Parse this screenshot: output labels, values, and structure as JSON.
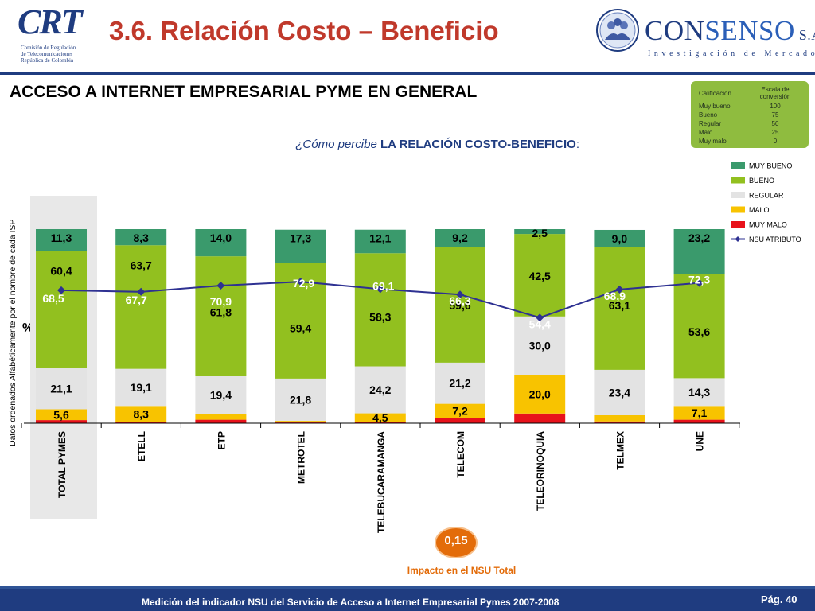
{
  "header": {
    "title": "3.6. Relación Costo – Beneficio",
    "crt_logo_text": "CRT",
    "crt_sub_lines": [
      "Comisión de Regulación",
      "de Telecomunicaciones",
      "República de Colombia"
    ],
    "consenso_name_a": "CON",
    "consenso_name_b": "SENSO",
    "consenso_suffix": " S.A.",
    "consenso_tagline": "Investigación de Mercados"
  },
  "section_title": "ACCESO A INTERNET EMPRESARIAL PYME EN GENERAL",
  "question": {
    "prefix": "¿Cómo percibe ",
    "bold": "LA RELACIÓN COSTO-BENEFICIO",
    "suffix": ":"
  },
  "scale_table": {
    "col1_header": "Calificación",
    "col2_header": "Escala de conversión",
    "rows": [
      {
        "label": "Muy bueno",
        "value": "100"
      },
      {
        "label": "Bueno",
        "value": "75"
      },
      {
        "label": "Regular",
        "value": "50"
      },
      {
        "label": "Malo",
        "value": "25"
      },
      {
        "label": "Muy malo",
        "value": "0"
      }
    ]
  },
  "y_axis_label": "Datos ordenados Alfabéticamente por el nombre de cada ISP",
  "pct_label": "%",
  "impact": {
    "value": "0,15",
    "label": "Impacto en el NSU Total"
  },
  "footer": {
    "text": "Medición del  indicador NSU del Servicio de Acceso a Internet Empresarial Pymes 2007-2008",
    "page": "Pág. 40"
  },
  "colors": {
    "muy_bueno": "#3a9a6c",
    "bueno": "#92c01f",
    "regular": "#e3e3e3",
    "malo": "#f8c300",
    "muy_malo": "#e8121b",
    "nsu_line": "#2e3192",
    "title_red": "#c0392b",
    "brand_blue": "#1f3c80"
  },
  "chart_data": {
    "type": "bar",
    "stacked": true,
    "categories": [
      "TOTAL PYMES",
      "ETELL",
      "ETP",
      "METROTEL",
      "TELEBUCARAMANGA",
      "TELECOM",
      "TELEORINOQUIA",
      "TELMEX",
      "UNE"
    ],
    "series": [
      {
        "name": "MUY MALO",
        "values": [
          1.6,
          0.6,
          1.8,
          0.4,
          0.6,
          2.8,
          5.0,
          0.9,
          1.8
        ]
      },
      {
        "name": "MALO",
        "values": [
          5.6,
          8.3,
          3.0,
          0.8,
          4.5,
          7.2,
          20.0,
          3.2,
          7.1
        ]
      },
      {
        "name": "REGULAR",
        "values": [
          21.1,
          19.1,
          19.4,
          21.8,
          24.2,
          21.2,
          30.0,
          23.4,
          14.3
        ]
      },
      {
        "name": "BUENO",
        "values": [
          60.4,
          63.7,
          61.8,
          59.4,
          58.3,
          59.6,
          42.5,
          63.1,
          53.6
        ]
      },
      {
        "name": "MUY BUENO",
        "values": [
          11.3,
          8.3,
          14.0,
          17.3,
          12.1,
          9.2,
          2.5,
          9.0,
          23.2
        ]
      }
    ],
    "bar_labels": {
      "MALO": [
        "5,6",
        "8,3",
        "",
        "",
        "4,5",
        "7,2",
        "20,0",
        "",
        "7,1"
      ],
      "REGULAR": [
        "21,1",
        "19,1",
        "19,4",
        "21,8",
        "24,2",
        "21,2",
        "30,0",
        "23,4",
        "14,3"
      ],
      "BUENO": [
        "60,4",
        "63,7",
        "61,8",
        "59,4",
        "58,3",
        "59,6",
        "42,5",
        "63,1",
        "53,6"
      ],
      "MUY BUENO": [
        "11,3",
        "8,3",
        "14,0",
        "17,3",
        "12,1",
        "9,2",
        "2,5",
        "9,0",
        "23,2"
      ]
    },
    "line": {
      "name": "NSU ATRIBUTO",
      "values": [
        68.5,
        67.7,
        70.9,
        72.9,
        69.1,
        66.3,
        54.4,
        68.9,
        72.3
      ],
      "labels": [
        "68,5",
        "67,7",
        "70,9",
        "72,9",
        "69,1",
        "66,3",
        "54,4",
        "68,9",
        "72,3"
      ]
    },
    "legend": [
      "MUY BUENO",
      "BUENO",
      "REGULAR",
      "MALO",
      "MUY MALO",
      "NSU ATRIBUTO"
    ],
    "legend_position": "right",
    "ylim": [
      0,
      100
    ],
    "highlight_category": "TOTAL PYMES"
  }
}
